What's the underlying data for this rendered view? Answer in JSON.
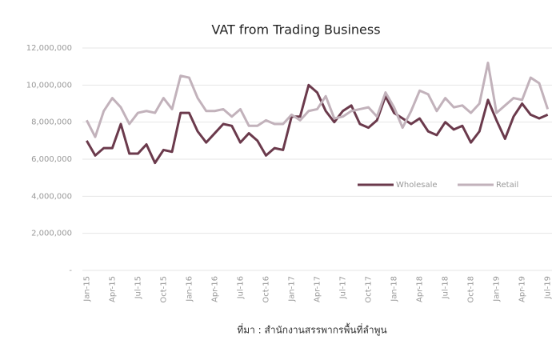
{
  "chart_data": {
    "type": "line",
    "title": "VAT from Trading Business",
    "categories": [
      "Jan-15",
      null,
      null,
      "Apr-15",
      null,
      null,
      "Jul-15",
      null,
      null,
      "Oct-15",
      null,
      null,
      "Jan-16",
      null,
      null,
      "Apr-16",
      null,
      null,
      "Jul-16",
      null,
      null,
      "Oct-16",
      null,
      null,
      "Jan-17",
      null,
      null,
      "Apr-17",
      null,
      null,
      "Jul-17",
      null,
      null,
      "Oct-17",
      null,
      null,
      "Jan-18",
      null,
      null,
      "Apr-18",
      null,
      null,
      "Jul-18",
      null,
      null,
      "Oct-18",
      null,
      null,
      "Jan-19",
      null,
      null,
      "Apr-19",
      null,
      null,
      "Jul-19"
    ],
    "series": [
      {
        "name": "Wholesale",
        "color": "#6b3a4c",
        "values": [
          7000000,
          6200000,
          6600000,
          6600000,
          7900000,
          6300000,
          6300000,
          6800000,
          5800000,
          6500000,
          6400000,
          8500000,
          8500000,
          7500000,
          6900000,
          7400000,
          7900000,
          7800000,
          6900000,
          7400000,
          7000000,
          6200000,
          6600000,
          6500000,
          8300000,
          8300000,
          10000000,
          9600000,
          8600000,
          8000000,
          8600000,
          8900000,
          7900000,
          7700000,
          8100000,
          9400000,
          8500000,
          8200000,
          7900000,
          8200000,
          7500000,
          7300000,
          8000000,
          7600000,
          7800000,
          6900000,
          7500000,
          9200000,
          8100000,
          7100000,
          8300000,
          9000000,
          8400000,
          8200000,
          8400000
        ]
      },
      {
        "name": "Retail",
        "color": "#c2b2bb",
        "values": [
          8100000,
          7200000,
          8600000,
          9300000,
          8800000,
          7900000,
          8500000,
          8600000,
          8500000,
          9300000,
          8700000,
          10500000,
          10400000,
          9300000,
          8600000,
          8600000,
          8700000,
          8300000,
          8700000,
          7800000,
          7800000,
          8100000,
          7900000,
          7900000,
          8400000,
          8100000,
          8600000,
          8700000,
          9400000,
          8200000,
          8300000,
          8600000,
          8700000,
          8800000,
          8300000,
          9600000,
          8800000,
          7700000,
          8600000,
          9700000,
          9500000,
          8600000,
          9300000,
          8800000,
          8900000,
          8500000,
          9000000,
          11200000,
          8500000,
          8900000,
          9300000,
          9200000,
          10400000,
          10100000,
          8700000
        ]
      }
    ],
    "ylim": [
      0,
      12000000
    ],
    "yticks": [
      {
        "value": 0,
        "label": "-"
      },
      {
        "value": 2000000,
        "label": "2,000,000"
      },
      {
        "value": 4000000,
        "label": "4,000,000"
      },
      {
        "value": 6000000,
        "label": "6,000,000"
      },
      {
        "value": 8000000,
        "label": "8,000,000"
      },
      {
        "value": 10000000,
        "label": "10,000,000"
      },
      {
        "value": 12000000,
        "label": "12,000,000"
      }
    ],
    "grid": true,
    "source": "ที่มา : สำนักงานสรรพากรพื้นที่ลำพูน"
  }
}
